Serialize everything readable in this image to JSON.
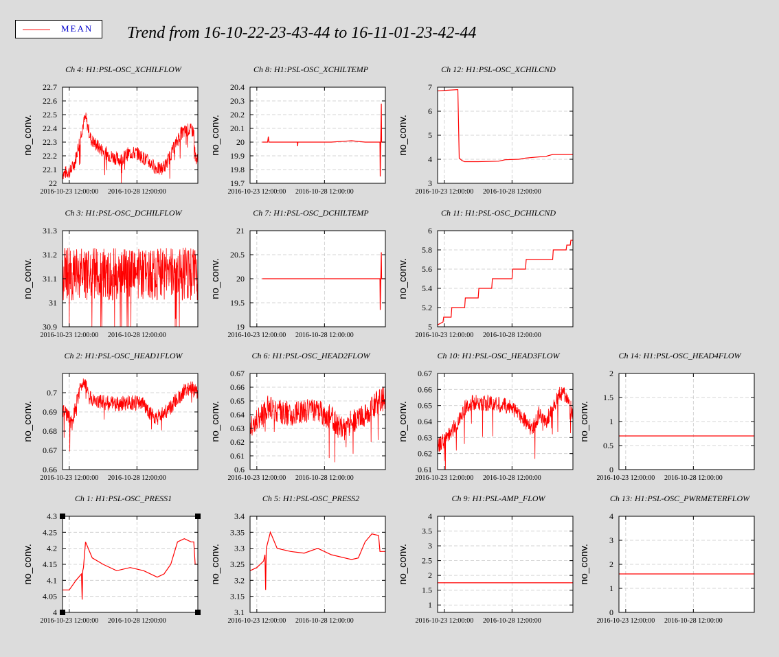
{
  "legend": {
    "label": "MEAN",
    "color": "#ff0000"
  },
  "title": "Trend from 16-10-22-23-43-44 to 16-11-01-23-42-44",
  "chart_data": [
    {
      "type": "line",
      "title": "Ch 4: H1:PSL-OSC_XCHILFLOW",
      "ylabel": "no_conv.",
      "ylim": [
        22,
        22.7
      ],
      "yticks": [
        "22",
        "22.1",
        "22.2",
        "22.3",
        "22.4",
        "22.5",
        "22.6",
        "22.7"
      ],
      "xlim": [
        0,
        10
      ],
      "xticks": [
        0.5,
        5.5
      ],
      "xtick_labels": [
        "2016-10-23 12:00:00",
        "2016-10-28 12:00:00"
      ],
      "grid": true,
      "noisy": true,
      "series": [
        {
          "color": "#ff0000",
          "band": 0.05,
          "x": [
            0,
            0.6,
            0.9,
            1.2,
            1.5,
            1.7,
            2.1,
            2.8,
            3.5,
            4.3,
            4.9,
            5.5,
            6.2,
            6.8,
            7.2,
            7.6,
            8.2,
            8.7,
            9.3,
            9.7,
            9.8,
            10
          ],
          "y": [
            22.07,
            22.09,
            22.15,
            22.28,
            22.42,
            22.48,
            22.32,
            22.25,
            22.2,
            22.17,
            22.22,
            22.22,
            22.17,
            22.12,
            22.1,
            22.13,
            22.25,
            22.36,
            22.39,
            22.38,
            22.2,
            22.17
          ]
        }
      ]
    },
    {
      "type": "line",
      "title": "Ch 8: H1:PSL-OSC_XCHILTEMP",
      "ylabel": "no_conv.",
      "ylim": [
        19.7,
        20.4
      ],
      "yticks": [
        "19.7",
        "19.8",
        "19.9",
        "20",
        "20.1",
        "20.2",
        "20.3",
        "20.4"
      ],
      "xlim": [
        0,
        10
      ],
      "xticks": [
        0.5,
        5.5
      ],
      "xtick_labels": [
        "2016-10-23 12:00:00",
        "2016-10-28 12:00:00"
      ],
      "grid": true,
      "noisy": false,
      "series": [
        {
          "color": "#ff0000",
          "x": [
            0.9,
            1.3,
            1.35,
            1.4,
            3.5,
            3.52,
            3.54,
            6,
            7.5,
            8.5,
            9.6,
            9.62,
            9.7,
            9.72,
            10
          ],
          "y": [
            20,
            20,
            20.04,
            20,
            20,
            19.97,
            20,
            20,
            20.01,
            20,
            20,
            19.75,
            20.28,
            20,
            20
          ]
        }
      ]
    },
    {
      "type": "line",
      "title": "Ch 12: H1:PSL-OSC_XCHILCND",
      "ylabel": "no_conv.",
      "ylim": [
        3,
        7
      ],
      "yticks": [
        "3",
        "4",
        "5",
        "6",
        "7"
      ],
      "xlim": [
        0,
        10
      ],
      "xticks": [
        0.5,
        5.5
      ],
      "xtick_labels": [
        "2016-10-23 12:00:00",
        "2016-10-28 12:00:00"
      ],
      "grid": true,
      "noisy": false,
      "series": [
        {
          "color": "#ff0000",
          "x": [
            0,
            1.5,
            1.6,
            1.8,
            2.0,
            3.0,
            4.5,
            5,
            6,
            6.5,
            7.5,
            8.0,
            8.5,
            10
          ],
          "y": [
            6.85,
            6.9,
            4.05,
            3.95,
            3.9,
            3.9,
            3.92,
            3.98,
            4.0,
            4.05,
            4.1,
            4.12,
            4.2,
            4.2
          ]
        }
      ]
    },
    {
      "type": "line",
      "title": "Ch 3: H1:PSL-OSC_DCHILFLOW",
      "ylabel": "no_conv.",
      "ylim": [
        30.9,
        31.3
      ],
      "yticks": [
        "30.9",
        "31",
        "31.1",
        "31.2",
        "31.3"
      ],
      "xlim": [
        0,
        10
      ],
      "xticks": [
        0.5,
        5.5
      ],
      "xtick_labels": [
        "2016-10-23 12:00:00",
        "2016-10-28 12:00:00"
      ],
      "grid": true,
      "noisy": true,
      "series": [
        {
          "color": "#ff0000",
          "band": 0.11,
          "x": [
            0,
            10
          ],
          "y": [
            31.12,
            31.12
          ]
        }
      ]
    },
    {
      "type": "line",
      "title": "Ch 7: H1:PSL-OSC_DCHILTEMP",
      "ylabel": "no_conv.",
      "ylim": [
        19,
        21
      ],
      "yticks": [
        "19",
        "19.5",
        "20",
        "20.5",
        "21"
      ],
      "xlim": [
        0,
        10
      ],
      "xticks": [
        0.5,
        5.5
      ],
      "xtick_labels": [
        "2016-10-23 12:00:00",
        "2016-10-28 12:00:00"
      ],
      "grid": true,
      "noisy": false,
      "series": [
        {
          "color": "#ff0000",
          "x": [
            0.9,
            9.0,
            9.6,
            9.62,
            9.7,
            9.72,
            10
          ],
          "y": [
            20,
            20,
            20,
            19.35,
            20.55,
            20,
            20
          ]
        }
      ]
    },
    {
      "type": "line",
      "title": "Ch 11: H1:PSL-OSC_DCHILCND",
      "ylabel": "no_conv.",
      "ylim": [
        5,
        6
      ],
      "yticks": [
        "5",
        "5.2",
        "5.4",
        "5.6",
        "5.8",
        "6"
      ],
      "xlim": [
        0,
        10
      ],
      "xticks": [
        0.5,
        5.5
      ],
      "xtick_labels": [
        "2016-10-23 12:00:00",
        "2016-10-28 12:00:00"
      ],
      "grid": true,
      "noisy": false,
      "series": [
        {
          "color": "#ff0000",
          "x": [
            0,
            0.4,
            0.45,
            1.0,
            1.05,
            2.0,
            2.05,
            3.0,
            3.05,
            4.0,
            4.05,
            5.5,
            5.55,
            6.5,
            6.55,
            7.5,
            7.55,
            8.5,
            8.55,
            9.5,
            9.55,
            9.8,
            9.85,
            10
          ],
          "y": [
            5.02,
            5.05,
            5.1,
            5.1,
            5.2,
            5.2,
            5.3,
            5.3,
            5.4,
            5.4,
            5.5,
            5.5,
            5.6,
            5.6,
            5.7,
            5.7,
            5.7,
            5.7,
            5.8,
            5.8,
            5.85,
            5.85,
            5.9,
            5.9
          ]
        }
      ]
    },
    {
      "type": "line",
      "title": "Ch 2: H1:PSL-OSC_HEAD1FLOW",
      "ylabel": "no_conv.",
      "ylim": [
        0.66,
        0.71
      ],
      "yticks": [
        "0.66",
        "0.67",
        "0.68",
        "0.69",
        "0.7"
      ],
      "xlim": [
        0,
        10
      ],
      "xticks": [
        0.5,
        5.5
      ],
      "xtick_labels": [
        "2016-10-23 12:00:00",
        "2016-10-28 12:00:00"
      ],
      "grid": true,
      "noisy": true,
      "series": [
        {
          "color": "#ff0000",
          "band": 0.004,
          "x": [
            0,
            0.5,
            0.7,
            1.0,
            1.3,
            1.6,
            2.0,
            3.0,
            4.0,
            5.0,
            6.0,
            6.5,
            7.0,
            7.5,
            8.0,
            8.5,
            9.0,
            9.5,
            10
          ],
          "y": [
            0.69,
            0.688,
            0.683,
            0.694,
            0.702,
            0.707,
            0.697,
            0.695,
            0.694,
            0.695,
            0.694,
            0.689,
            0.687,
            0.69,
            0.692,
            0.697,
            0.701,
            0.703,
            0.699
          ]
        }
      ]
    },
    {
      "type": "line",
      "title": "Ch 6: H1:PSL-OSC_HEAD2FLOW",
      "ylabel": "no_conv.",
      "ylim": [
        0.6,
        0.67
      ],
      "yticks": [
        "0.6",
        "0.61",
        "0.62",
        "0.63",
        "0.64",
        "0.65",
        "0.66",
        "0.67"
      ],
      "xlim": [
        0,
        10
      ],
      "xticks": [
        0.5,
        5.5
      ],
      "xtick_labels": [
        "2016-10-23 12:00:00",
        "2016-10-28 12:00:00"
      ],
      "grid": true,
      "noisy": true,
      "series": [
        {
          "color": "#ff0000",
          "band": 0.009,
          "x": [
            0,
            0.5,
            1.0,
            1.3,
            2.0,
            3.0,
            4.0,
            5.0,
            6.0,
            6.5,
            7.0,
            7.5,
            8.0,
            8.5,
            9.0,
            9.5,
            10
          ],
          "y": [
            0.632,
            0.635,
            0.64,
            0.645,
            0.643,
            0.64,
            0.643,
            0.642,
            0.638,
            0.632,
            0.63,
            0.635,
            0.636,
            0.64,
            0.645,
            0.65,
            0.652
          ]
        }
      ]
    },
    {
      "type": "line",
      "title": "Ch 10: H1:PSL-OSC_HEAD3FLOW",
      "ylabel": "no_conv.",
      "ylim": [
        0.61,
        0.67
      ],
      "yticks": [
        "0.61",
        "0.62",
        "0.63",
        "0.64",
        "0.65",
        "0.66",
        "0.67"
      ],
      "xlim": [
        0,
        10
      ],
      "xticks": [
        0.5,
        5.5
      ],
      "xtick_labels": [
        "2016-10-23 12:00:00",
        "2016-10-28 12:00:00"
      ],
      "grid": true,
      "noisy": true,
      "series": [
        {
          "color": "#ff0000",
          "band": 0.005,
          "x": [
            0,
            0.5,
            1.0,
            1.5,
            2.0,
            2.5,
            3.0,
            4.0,
            5.0,
            5.5,
            6.0,
            6.5,
            7.0,
            7.5,
            8.0,
            8.5,
            9.0,
            9.5,
            10
          ],
          "y": [
            0.625,
            0.628,
            0.633,
            0.64,
            0.648,
            0.652,
            0.652,
            0.651,
            0.65,
            0.648,
            0.645,
            0.64,
            0.635,
            0.645,
            0.64,
            0.648,
            0.658,
            0.656,
            0.645
          ]
        }
      ]
    },
    {
      "type": "line",
      "title": "Ch 14: H1:PSL-OSC_HEAD4FLOW",
      "ylabel": "no_conv.",
      "ylim": [
        0,
        2
      ],
      "yticks": [
        "0",
        "0.5",
        "1",
        "1.5",
        "2"
      ],
      "xlim": [
        0,
        10
      ],
      "xticks": [
        0.5,
        5.5
      ],
      "xtick_labels": [
        "2016-10-23 12:00:00",
        "2016-10-28 12:00:00"
      ],
      "grid": true,
      "noisy": false,
      "series": [
        {
          "color": "#ff0000",
          "x": [
            0,
            10
          ],
          "y": [
            0.7,
            0.7
          ]
        }
      ]
    },
    {
      "type": "line",
      "title": "Ch 1: H1:PSL-OSC_PRESS1",
      "ylabel": "no_conv.",
      "ylim": [
        4,
        4.3
      ],
      "yticks": [
        "4",
        "4.05",
        "4.1",
        "4.15",
        "4.2",
        "4.25",
        "4.3"
      ],
      "xlim": [
        0,
        10
      ],
      "xticks": [
        0.5,
        5.5
      ],
      "xtick_labels": [
        "2016-10-23 12:00:00",
        "2016-10-28 12:00:00"
      ],
      "grid": true,
      "noisy": false,
      "selected": true,
      "series": [
        {
          "color": "#ff0000",
          "x": [
            0,
            0.5,
            1.0,
            1.4,
            1.45,
            1.5,
            1.55,
            1.7,
            2.2,
            3.0,
            4.0,
            5.0,
            6.0,
            7.0,
            7.5,
            8.0,
            8.5,
            9.0,
            9.5,
            9.7,
            9.8,
            10
          ],
          "y": [
            4.07,
            4.07,
            4.1,
            4.12,
            4.04,
            4.13,
            4.14,
            4.22,
            4.17,
            4.15,
            4.13,
            4.14,
            4.13,
            4.11,
            4.12,
            4.15,
            4.22,
            4.23,
            4.22,
            4.22,
            4.15,
            4.15
          ]
        }
      ]
    },
    {
      "type": "line",
      "title": "Ch 5: H1:PSL-OSC_PRESS2",
      "ylabel": "no_conv.",
      "ylim": [
        3.1,
        3.4
      ],
      "yticks": [
        "3.1",
        "3.15",
        "3.2",
        "3.25",
        "3.3",
        "3.35",
        "3.4"
      ],
      "xlim": [
        0,
        10
      ],
      "xticks": [
        0.5,
        5.5
      ],
      "xtick_labels": [
        "2016-10-23 12:00:00",
        "2016-10-28 12:00:00"
      ],
      "grid": true,
      "noisy": false,
      "series": [
        {
          "color": "#ff0000",
          "x": [
            0,
            0.5,
            1.0,
            1.1,
            1.15,
            1.2,
            1.5,
            2.0,
            3.0,
            4.0,
            5.0,
            6.0,
            7.0,
            7.5,
            8.0,
            8.5,
            9.0,
            9.5,
            9.6,
            10
          ],
          "y": [
            3.23,
            3.24,
            3.26,
            3.28,
            3.17,
            3.3,
            3.35,
            3.3,
            3.29,
            3.285,
            3.3,
            3.28,
            3.27,
            3.265,
            3.27,
            3.32,
            3.345,
            3.34,
            3.29,
            3.29
          ]
        }
      ]
    },
    {
      "type": "line",
      "title": "Ch 9: H1:PSL-AMP_FLOW",
      "ylabel": "no_conv.",
      "ylim": [
        0.75,
        4
      ],
      "yticks": [
        "1",
        "1.5",
        "2",
        "2.5",
        "3",
        "3.5",
        "4"
      ],
      "xlim": [
        0,
        10
      ],
      "xticks": [
        0.5,
        5.5
      ],
      "xtick_labels": [
        "2016-10-23 12:00:00",
        "2016-10-28 12:00:00"
      ],
      "grid": true,
      "noisy": false,
      "series": [
        {
          "color": "#ff0000",
          "x": [
            0,
            10
          ],
          "y": [
            1.75,
            1.75
          ]
        }
      ]
    },
    {
      "type": "line",
      "title": "Ch 13: H1:PSL-OSC_PWRMETERFLOW",
      "ylabel": "no_conv.",
      "ylim": [
        0,
        4
      ],
      "yticks": [
        "0",
        "1",
        "2",
        "3",
        "4"
      ],
      "xlim": [
        0,
        10
      ],
      "xticks": [
        0.5,
        5.5
      ],
      "xtick_labels": [
        "2016-10-23 12:00:00",
        "2016-10-28 12:00:00"
      ],
      "grid": true,
      "noisy": false,
      "series": [
        {
          "color": "#ff0000",
          "x": [
            0,
            10
          ],
          "y": [
            1.6,
            1.6
          ]
        }
      ]
    }
  ]
}
